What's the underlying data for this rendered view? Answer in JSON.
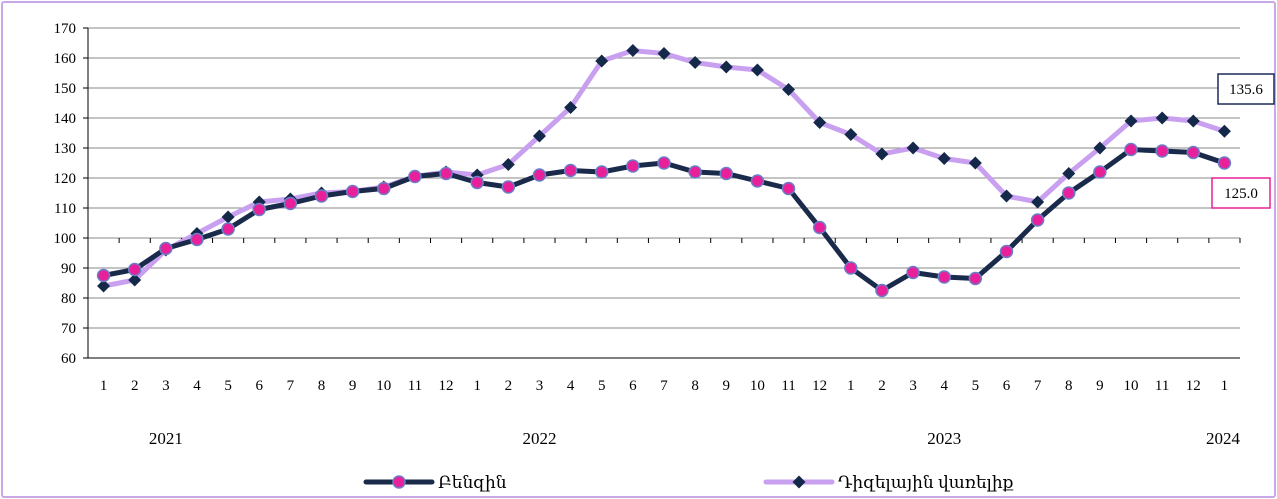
{
  "chart_data": {
    "type": "line",
    "title": "",
    "xlabel": "",
    "ylabel": "",
    "ylim": [
      60,
      170
    ],
    "yticks": [
      60,
      70,
      80,
      90,
      100,
      110,
      120,
      130,
      140,
      150,
      160,
      170
    ],
    "grid": "horizontal",
    "legend_position": "bottom",
    "categories": [
      "1",
      "2",
      "3",
      "4",
      "5",
      "6",
      "7",
      "8",
      "9",
      "10",
      "11",
      "12",
      "1",
      "2",
      "3",
      "4",
      "5",
      "6",
      "7",
      "8",
      "9",
      "10",
      "11",
      "12",
      "1",
      "2",
      "3",
      "4",
      "5",
      "6",
      "7",
      "8",
      "9",
      "10",
      "11",
      "12",
      "1"
    ],
    "year_labels": [
      {
        "label": "2021",
        "month_index": 2
      },
      {
        "label": "2022",
        "month_index": 14
      },
      {
        "label": "2023",
        "month_index": 27
      },
      {
        "label": "2024",
        "month_index": 36
      }
    ],
    "series": [
      {
        "name": "Բենզին",
        "line_color": "#1a2a4a",
        "marker": "circle",
        "marker_color": "#e8209a",
        "values": [
          87.5,
          89.5,
          96.5,
          99.5,
          103.0,
          109.5,
          111.5,
          114.0,
          115.5,
          116.5,
          120.5,
          121.5,
          118.5,
          117.0,
          121.0,
          122.5,
          122.0,
          124.0,
          125.0,
          122.0,
          121.5,
          119.0,
          116.5,
          103.5,
          90.0,
          82.5,
          88.5,
          87.0,
          86.5,
          95.5,
          106.0,
          115.0,
          122.0,
          129.5,
          129.0,
          128.5,
          125.0
        ]
      },
      {
        "name": "Դիզելային վառելիք",
        "line_color": "#c9a0f0",
        "marker": "diamond",
        "marker_color": "#14284a",
        "values": [
          84.0,
          86.0,
          96.0,
          101.5,
          107.0,
          112.0,
          113.0,
          115.0,
          115.5,
          117.0,
          120.5,
          122.0,
          121.0,
          124.5,
          134.0,
          143.5,
          159.0,
          162.5,
          161.5,
          158.5,
          157.0,
          156.0,
          149.5,
          138.5,
          134.5,
          128.0,
          130.0,
          126.5,
          125.0,
          114.0,
          112.0,
          121.5,
          130.0,
          139.0,
          140.0,
          139.0,
          135.6
        ]
      }
    ],
    "callouts": [
      {
        "text": "135.6",
        "series": "Դիզելային վառելիք",
        "border_color": "#1a2a5a"
      },
      {
        "text": "125.0",
        "series": "Բենզին",
        "border_color": "#e8209a"
      }
    ]
  }
}
